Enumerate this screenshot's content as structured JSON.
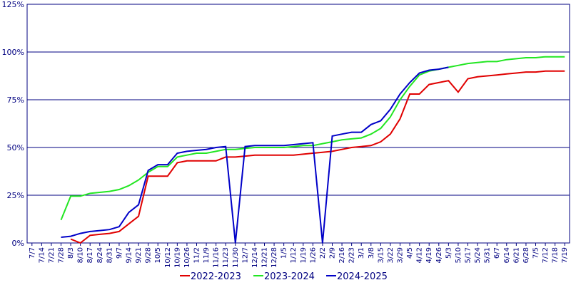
{
  "chart_data": {
    "type": "line",
    "categories": [
      "7/7",
      "7/14",
      "7/21",
      "7/28",
      "8/3",
      "8/10",
      "8/17",
      "8/24",
      "8/31",
      "9/7",
      "9/14",
      "9/21",
      "9/28",
      "10/5",
      "10/12",
      "10/19",
      "10/26",
      "11/2",
      "11/9",
      "11/16",
      "11/23",
      "11/30",
      "12/7",
      "12/14",
      "12/21",
      "12/28",
      "1/5",
      "1/12",
      "1/19",
      "1/26",
      "2/2",
      "2/9",
      "2/16",
      "2/23",
      "3/1",
      "3/8",
      "3/15",
      "3/22",
      "3/29",
      "4/5",
      "4/12",
      "4/19",
      "4/26",
      "5/3",
      "5/10",
      "5/17",
      "5/24",
      "5/31",
      "6/7",
      "6/14",
      "6/21",
      "6/28",
      "7/5",
      "7/12",
      "7/18",
      "7/19"
    ],
    "series": [
      {
        "name": "2022-2023",
        "color": "#e00000",
        "values": [
          null,
          null,
          null,
          null,
          2,
          0,
          4,
          4.5,
          5,
          6,
          10,
          14,
          35,
          35,
          35,
          42,
          43,
          43,
          43,
          43,
          45,
          45,
          45.5,
          46,
          46,
          46,
          46,
          46,
          46.5,
          47,
          47.5,
          48,
          49,
          50,
          50.5,
          51,
          53,
          57,
          65,
          78,
          78,
          83,
          84,
          85,
          79,
          86,
          87,
          87.5,
          88,
          88.5,
          89,
          89.5,
          89.5,
          90,
          90,
          90
        ]
      },
      {
        "name": "2023-2024",
        "color": "#22e622",
        "values": [
          null,
          null,
          null,
          12,
          24.5,
          24.5,
          26,
          26.5,
          27,
          28,
          30,
          33,
          37,
          40,
          40,
          45,
          46,
          47,
          47,
          48,
          49,
          49,
          49.5,
          50,
          50,
          50,
          50,
          50.5,
          51,
          51,
          52,
          53,
          54,
          54.5,
          55,
          57,
          60,
          66,
          75,
          82,
          88,
          90,
          91,
          92,
          93,
          94,
          94.5,
          95,
          95,
          96,
          96.5,
          97,
          97,
          97.5,
          97.5,
          97.5
        ]
      },
      {
        "name": "2024-2025",
        "color": "#0000c8",
        "values": [
          null,
          null,
          null,
          3,
          3.5,
          5,
          6,
          6.5,
          7,
          8.5,
          16,
          20,
          38,
          41,
          41,
          47,
          48,
          48.5,
          49,
          50,
          50.5,
          0,
          50.5,
          51,
          51,
          51,
          51,
          51.5,
          52,
          52.5,
          0,
          56,
          57,
          58,
          58,
          62,
          64,
          70,
          78,
          84,
          89,
          90.5,
          91,
          92,
          null,
          null,
          null,
          null,
          null,
          null,
          null,
          null,
          null,
          null,
          null,
          null
        ]
      }
    ],
    "ylim": [
      0,
      125
    ],
    "yticks": [
      {
        "value": 0,
        "label": "0%"
      },
      {
        "value": 25,
        "label": "25%"
      },
      {
        "value": 50,
        "label": "50%"
      },
      {
        "value": 75,
        "label": "75%"
      },
      {
        "value": 100,
        "label": "100%"
      },
      {
        "value": 125,
        "label": "125%"
      }
    ],
    "grid": true,
    "legend": "bottom"
  }
}
